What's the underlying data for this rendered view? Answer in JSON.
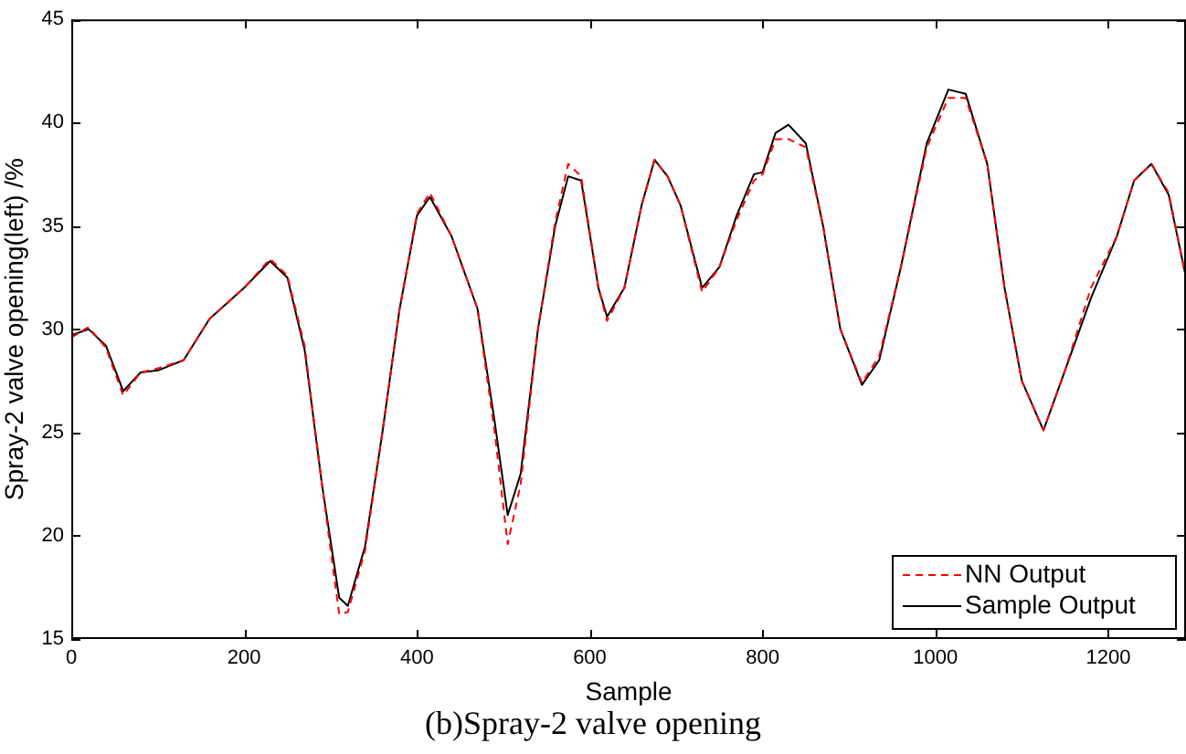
{
  "chart_data": {
    "type": "line",
    "xlabel": "Sample",
    "ylabel": "Spray-2 valve opening(left) /%",
    "annotations": [
      "(b)Spray-2 valve opening"
    ],
    "x": [
      0,
      20,
      40,
      60,
      80,
      100,
      130,
      160,
      200,
      230,
      250,
      270,
      290,
      310,
      320,
      340,
      360,
      380,
      400,
      415,
      440,
      470,
      490,
      505,
      520,
      540,
      560,
      575,
      590,
      610,
      620,
      640,
      660,
      675,
      690,
      705,
      730,
      750,
      770,
      790,
      800,
      815,
      830,
      850,
      870,
      890,
      915,
      935,
      960,
      990,
      1015,
      1035,
      1060,
      1080,
      1100,
      1125,
      1150,
      1180,
      1210,
      1230,
      1250,
      1270,
      1290
    ],
    "series": [
      {
        "name": "NN Output",
        "color": "#ff0000",
        "line_style": "dashed",
        "values": [
          29.6,
          30.1,
          29.1,
          26.8,
          27.9,
          28.1,
          28.5,
          30.5,
          32.0,
          33.4,
          32.6,
          29.2,
          22.5,
          16.2,
          16.3,
          19.3,
          25.0,
          31.0,
          35.6,
          36.6,
          34.5,
          31.0,
          25.0,
          19.6,
          22.5,
          30.0,
          35.2,
          38.0,
          37.4,
          32.0,
          30.4,
          32.0,
          36.0,
          38.2,
          37.4,
          36.0,
          31.8,
          33.0,
          35.3,
          37.2,
          37.5,
          39.2,
          39.2,
          38.8,
          35.0,
          30.0,
          27.4,
          28.7,
          33.0,
          38.8,
          41.2,
          41.2,
          38.0,
          32.0,
          27.5,
          25.1,
          28.0,
          32.0,
          34.5,
          37.2,
          38.0,
          36.6,
          32.5
        ]
      },
      {
        "name": "Sample Output",
        "color": "#000000",
        "line_style": "solid",
        "values": [
          29.7,
          30.0,
          29.2,
          27.0,
          27.9,
          28.0,
          28.5,
          30.5,
          32.0,
          33.3,
          32.5,
          29.0,
          22.5,
          17.0,
          16.6,
          19.5,
          25.0,
          31.0,
          35.5,
          36.4,
          34.5,
          31.0,
          25.5,
          21.0,
          23.0,
          30.0,
          35.0,
          37.4,
          37.2,
          32.0,
          30.6,
          32.0,
          36.0,
          38.2,
          37.4,
          36.0,
          32.0,
          33.0,
          35.5,
          37.5,
          37.6,
          39.5,
          39.9,
          39.0,
          35.0,
          30.0,
          27.3,
          28.5,
          33.0,
          39.0,
          41.6,
          41.4,
          38.0,
          32.0,
          27.5,
          25.1,
          28.0,
          31.5,
          34.5,
          37.2,
          38.0,
          36.5,
          32.5
        ]
      }
    ],
    "xlim": [
      0,
      1290
    ],
    "xticks": [
      0,
      200,
      400,
      600,
      800,
      1000,
      1200
    ],
    "ylim": [
      15,
      45
    ],
    "yticks": [
      15,
      20,
      25,
      30,
      35,
      40,
      45
    ],
    "grid": false,
    "legend": "bottom right",
    "marker": "none"
  }
}
